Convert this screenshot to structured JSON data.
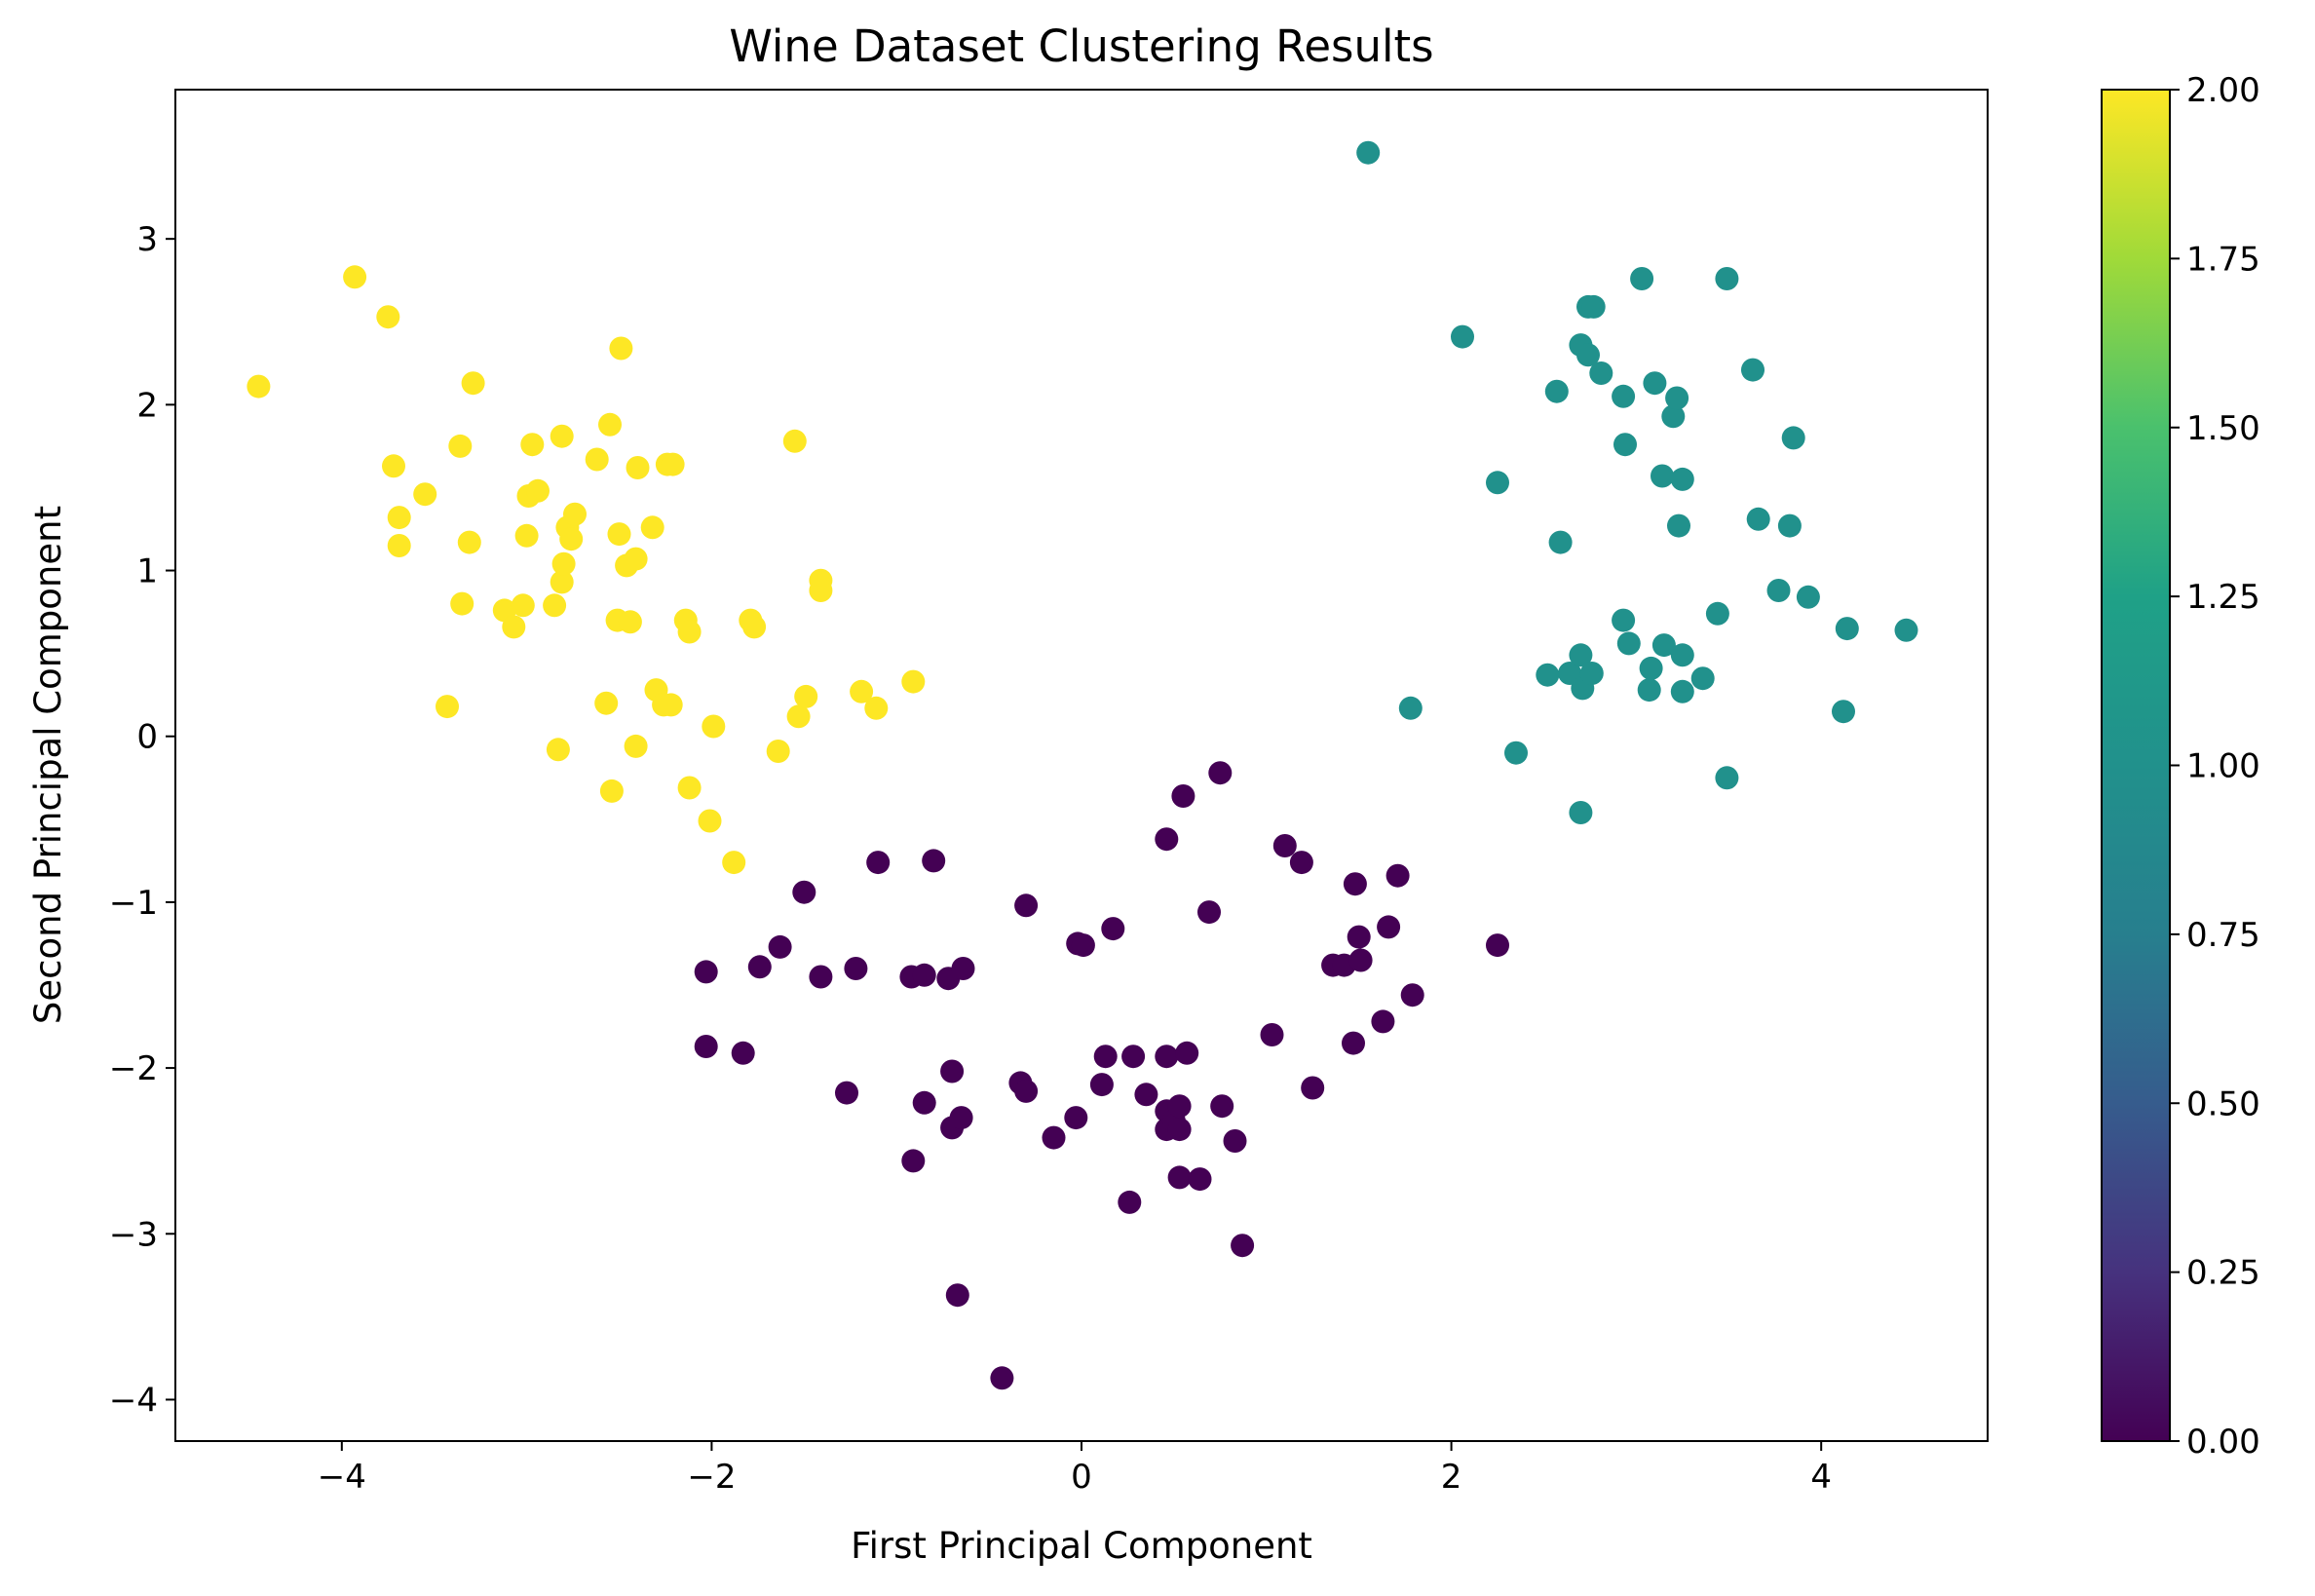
{
  "chart_data": {
    "type": "scatter",
    "title": "Wine Dataset Clustering Results",
    "xlabel": "First Principal Component",
    "ylabel": "Second Principal Component",
    "xlim": [
      -4.9,
      4.9
    ],
    "ylim": [
      -4.25,
      3.9
    ],
    "x_ticks": [
      -4,
      -2,
      0,
      2,
      4
    ],
    "x_tick_labels": [
      "−4",
      "−2",
      "0",
      "2",
      "4"
    ],
    "y_ticks": [
      -4,
      -3,
      -2,
      -1,
      0,
      1,
      2,
      3
    ],
    "y_tick_labels": [
      "−4",
      "−3",
      "−2",
      "−1",
      "0",
      "1",
      "2",
      "3"
    ],
    "grid": false,
    "colormap": "viridis",
    "colorbar": {
      "range": [
        0,
        2
      ],
      "ticks": [
        0,
        0.25,
        0.5,
        0.75,
        1,
        1.25,
        1.5,
        1.75,
        2
      ],
      "tick_labels": [
        "0.00",
        "0.25",
        "0.50",
        "0.75",
        "1.00",
        "1.25",
        "1.50",
        "1.75",
        "2.00"
      ]
    },
    "cluster_colors": {
      "0": "#440154",
      "1": "#21918c",
      "2": "#fde725"
    },
    "points": [
      {
        "x": -4.45,
        "y": 2.11,
        "c": 2
      },
      {
        "x": -3.93,
        "y": 2.77,
        "c": 2
      },
      {
        "x": -3.75,
        "y": 2.53,
        "c": 2
      },
      {
        "x": -3.72,
        "y": 1.63,
        "c": 2
      },
      {
        "x": -3.69,
        "y": 1.32,
        "c": 2
      },
      {
        "x": -3.69,
        "y": 1.15,
        "c": 2
      },
      {
        "x": -3.55,
        "y": 1.46,
        "c": 2
      },
      {
        "x": -3.43,
        "y": 0.18,
        "c": 2
      },
      {
        "x": -3.36,
        "y": 1.75,
        "c": 2
      },
      {
        "x": -3.35,
        "y": 0.8,
        "c": 2
      },
      {
        "x": -3.31,
        "y": 1.17,
        "c": 2
      },
      {
        "x": -3.29,
        "y": 2.13,
        "c": 2
      },
      {
        "x": -3.12,
        "y": 0.76,
        "c": 2
      },
      {
        "x": -3.07,
        "y": 0.66,
        "c": 2
      },
      {
        "x": -3.02,
        "y": 0.79,
        "c": 2
      },
      {
        "x": -3.0,
        "y": 1.21,
        "c": 2
      },
      {
        "x": -2.99,
        "y": 1.45,
        "c": 2
      },
      {
        "x": -2.97,
        "y": 1.76,
        "c": 2
      },
      {
        "x": -2.94,
        "y": 1.48,
        "c": 2
      },
      {
        "x": -2.85,
        "y": 0.79,
        "c": 2
      },
      {
        "x": -2.83,
        "y": -0.08,
        "c": 2
      },
      {
        "x": -2.81,
        "y": 1.81,
        "c": 2
      },
      {
        "x": -2.81,
        "y": 0.93,
        "c": 2
      },
      {
        "x": -2.8,
        "y": 1.04,
        "c": 2
      },
      {
        "x": -2.78,
        "y": 1.26,
        "c": 2
      },
      {
        "x": -2.76,
        "y": 1.19,
        "c": 2
      },
      {
        "x": -2.74,
        "y": 1.34,
        "c": 2
      },
      {
        "x": -2.62,
        "y": 1.67,
        "c": 2
      },
      {
        "x": -2.57,
        "y": 0.2,
        "c": 2
      },
      {
        "x": -2.55,
        "y": 1.88,
        "c": 2
      },
      {
        "x": -2.54,
        "y": -0.33,
        "c": 2
      },
      {
        "x": -2.51,
        "y": 0.7,
        "c": 2
      },
      {
        "x": -2.5,
        "y": 1.22,
        "c": 2
      },
      {
        "x": -2.49,
        "y": 2.34,
        "c": 2
      },
      {
        "x": -2.46,
        "y": 1.03,
        "c": 2
      },
      {
        "x": -2.44,
        "y": 0.69,
        "c": 2
      },
      {
        "x": -2.41,
        "y": 1.07,
        "c": 2
      },
      {
        "x": -2.41,
        "y": -0.06,
        "c": 2
      },
      {
        "x": -2.4,
        "y": 1.62,
        "c": 2
      },
      {
        "x": -2.32,
        "y": 1.26,
        "c": 2
      },
      {
        "x": -2.3,
        "y": 0.28,
        "c": 2
      },
      {
        "x": -2.26,
        "y": 0.19,
        "c": 2
      },
      {
        "x": -2.24,
        "y": 1.64,
        "c": 2
      },
      {
        "x": -2.21,
        "y": 1.64,
        "c": 2
      },
      {
        "x": -2.22,
        "y": 0.19,
        "c": 2
      },
      {
        "x": -2.14,
        "y": 0.7,
        "c": 2
      },
      {
        "x": -2.12,
        "y": 0.63,
        "c": 2
      },
      {
        "x": -2.12,
        "y": -0.31,
        "c": 2
      },
      {
        "x": -2.01,
        "y": -0.51,
        "c": 2
      },
      {
        "x": -1.99,
        "y": 0.06,
        "c": 2
      },
      {
        "x": -1.88,
        "y": -0.76,
        "c": 2
      },
      {
        "x": -1.79,
        "y": 0.7,
        "c": 2
      },
      {
        "x": -1.77,
        "y": 0.66,
        "c": 2
      },
      {
        "x": -1.64,
        "y": -0.09,
        "c": 2
      },
      {
        "x": -1.55,
        "y": 1.78,
        "c": 2
      },
      {
        "x": -1.53,
        "y": 0.12,
        "c": 2
      },
      {
        "x": -1.49,
        "y": 0.24,
        "c": 2
      },
      {
        "x": -1.41,
        "y": 0.94,
        "c": 2
      },
      {
        "x": -1.41,
        "y": 0.88,
        "c": 2
      },
      {
        "x": -1.19,
        "y": 0.27,
        "c": 2
      },
      {
        "x": -1.11,
        "y": 0.17,
        "c": 2
      },
      {
        "x": -0.91,
        "y": 0.33,
        "c": 2
      },
      {
        "x": 1.55,
        "y": 3.52,
        "c": 1
      },
      {
        "x": 2.06,
        "y": 2.41,
        "c": 1
      },
      {
        "x": 2.25,
        "y": 1.53,
        "c": 1
      },
      {
        "x": 2.35,
        "y": -0.1,
        "c": 1
      },
      {
        "x": 1.78,
        "y": 0.17,
        "c": 1
      },
      {
        "x": 2.52,
        "y": 0.37,
        "c": 1
      },
      {
        "x": 2.57,
        "y": 2.08,
        "c": 1
      },
      {
        "x": 2.59,
        "y": 1.17,
        "c": 1
      },
      {
        "x": 2.64,
        "y": 0.38,
        "c": 1
      },
      {
        "x": 2.7,
        "y": 2.36,
        "c": 1
      },
      {
        "x": 2.7,
        "y": 0.49,
        "c": 1
      },
      {
        "x": 2.7,
        "y": -0.46,
        "c": 1
      },
      {
        "x": 2.71,
        "y": 0.29,
        "c": 1
      },
      {
        "x": 2.74,
        "y": 2.59,
        "c": 1
      },
      {
        "x": 2.74,
        "y": 2.3,
        "c": 1
      },
      {
        "x": 2.77,
        "y": 2.59,
        "c": 1
      },
      {
        "x": 2.76,
        "y": 0.38,
        "c": 1
      },
      {
        "x": 2.81,
        "y": 2.19,
        "c": 1
      },
      {
        "x": 2.93,
        "y": 2.05,
        "c": 1
      },
      {
        "x": 2.93,
        "y": 0.7,
        "c": 1
      },
      {
        "x": 2.94,
        "y": 1.76,
        "c": 1
      },
      {
        "x": 2.96,
        "y": 0.56,
        "c": 1
      },
      {
        "x": 3.03,
        "y": 2.76,
        "c": 1
      },
      {
        "x": 3.07,
        "y": 0.28,
        "c": 1
      },
      {
        "x": 3.08,
        "y": 0.41,
        "c": 1
      },
      {
        "x": 3.1,
        "y": 2.13,
        "c": 1
      },
      {
        "x": 3.14,
        "y": 1.57,
        "c": 1
      },
      {
        "x": 3.15,
        "y": 0.55,
        "c": 1
      },
      {
        "x": 3.2,
        "y": 1.93,
        "c": 1
      },
      {
        "x": 3.22,
        "y": 2.04,
        "c": 1
      },
      {
        "x": 3.23,
        "y": 1.27,
        "c": 1
      },
      {
        "x": 3.25,
        "y": 1.55,
        "c": 1
      },
      {
        "x": 3.25,
        "y": 0.49,
        "c": 1
      },
      {
        "x": 3.25,
        "y": 0.27,
        "c": 1
      },
      {
        "x": 3.36,
        "y": 0.35,
        "c": 1
      },
      {
        "x": 3.44,
        "y": 0.74,
        "c": 1
      },
      {
        "x": 3.49,
        "y": 2.76,
        "c": 1
      },
      {
        "x": 3.49,
        "y": -0.25,
        "c": 1
      },
      {
        "x": 3.63,
        "y": 2.21,
        "c": 1
      },
      {
        "x": 3.66,
        "y": 1.31,
        "c": 1
      },
      {
        "x": 3.77,
        "y": 0.88,
        "c": 1
      },
      {
        "x": 3.83,
        "y": 1.27,
        "c": 1
      },
      {
        "x": 3.85,
        "y": 1.8,
        "c": 1
      },
      {
        "x": 3.93,
        "y": 0.84,
        "c": 1
      },
      {
        "x": 4.12,
        "y": 0.15,
        "c": 1
      },
      {
        "x": 4.14,
        "y": 0.65,
        "c": 1
      },
      {
        "x": 4.46,
        "y": 0.64,
        "c": 1
      },
      {
        "x": -2.03,
        "y": -1.42,
        "c": 0
      },
      {
        "x": -2.03,
        "y": -1.87,
        "c": 0
      },
      {
        "x": -1.83,
        "y": -1.91,
        "c": 0
      },
      {
        "x": -1.74,
        "y": -1.39,
        "c": 0
      },
      {
        "x": -1.63,
        "y": -1.27,
        "c": 0
      },
      {
        "x": -1.5,
        "y": -0.94,
        "c": 0
      },
      {
        "x": -1.41,
        "y": -1.45,
        "c": 0
      },
      {
        "x": -1.27,
        "y": -2.15,
        "c": 0
      },
      {
        "x": -1.22,
        "y": -1.4,
        "c": 0
      },
      {
        "x": -1.1,
        "y": -0.76,
        "c": 0
      },
      {
        "x": -0.92,
        "y": -1.45,
        "c": 0
      },
      {
        "x": -0.91,
        "y": -2.56,
        "c": 0
      },
      {
        "x": -0.85,
        "y": -2.21,
        "c": 0
      },
      {
        "x": -0.85,
        "y": -1.44,
        "c": 0
      },
      {
        "x": -0.8,
        "y": -0.75,
        "c": 0
      },
      {
        "x": -0.72,
        "y": -1.46,
        "c": 0
      },
      {
        "x": -0.7,
        "y": -2.02,
        "c": 0
      },
      {
        "x": -0.7,
        "y": -2.36,
        "c": 0
      },
      {
        "x": -0.67,
        "y": -3.37,
        "c": 0
      },
      {
        "x": -0.65,
        "y": -2.3,
        "c": 0
      },
      {
        "x": -0.64,
        "y": -1.4,
        "c": 0
      },
      {
        "x": -0.43,
        "y": -3.87,
        "c": 0
      },
      {
        "x": -0.33,
        "y": -2.09,
        "c": 0
      },
      {
        "x": -0.3,
        "y": -1.02,
        "c": 0
      },
      {
        "x": -0.3,
        "y": -2.14,
        "c": 0
      },
      {
        "x": -0.15,
        "y": -2.42,
        "c": 0
      },
      {
        "x": -0.03,
        "y": -2.3,
        "c": 0
      },
      {
        "x": -0.02,
        "y": -1.25,
        "c": 0
      },
      {
        "x": 0.01,
        "y": -1.26,
        "c": 0
      },
      {
        "x": 0.11,
        "y": -2.1,
        "c": 0
      },
      {
        "x": 0.13,
        "y": -1.93,
        "c": 0
      },
      {
        "x": 0.17,
        "y": -1.16,
        "c": 0
      },
      {
        "x": 0.26,
        "y": -2.81,
        "c": 0
      },
      {
        "x": 0.28,
        "y": -1.93,
        "c": 0
      },
      {
        "x": 0.35,
        "y": -2.16,
        "c": 0
      },
      {
        "x": 0.46,
        "y": -0.62,
        "c": 0
      },
      {
        "x": 0.46,
        "y": -2.26,
        "c": 0
      },
      {
        "x": 0.46,
        "y": -2.37,
        "c": 0
      },
      {
        "x": 0.46,
        "y": -1.93,
        "c": 0
      },
      {
        "x": 0.5,
        "y": -2.32,
        "c": 0
      },
      {
        "x": 0.53,
        "y": -2.66,
        "c": 0
      },
      {
        "x": 0.53,
        "y": -2.23,
        "c": 0
      },
      {
        "x": 0.53,
        "y": -2.37,
        "c": 0
      },
      {
        "x": 0.55,
        "y": -0.36,
        "c": 0
      },
      {
        "x": 0.57,
        "y": -1.91,
        "c": 0
      },
      {
        "x": 0.64,
        "y": -2.67,
        "c": 0
      },
      {
        "x": 0.69,
        "y": -1.06,
        "c": 0
      },
      {
        "x": 0.75,
        "y": -0.22,
        "c": 0
      },
      {
        "x": 0.76,
        "y": -2.23,
        "c": 0
      },
      {
        "x": 0.83,
        "y": -2.44,
        "c": 0
      },
      {
        "x": 0.87,
        "y": -3.07,
        "c": 0
      },
      {
        "x": 1.03,
        "y": -1.8,
        "c": 0
      },
      {
        "x": 1.1,
        "y": -0.66,
        "c": 0
      },
      {
        "x": 1.19,
        "y": -0.76,
        "c": 0
      },
      {
        "x": 1.25,
        "y": -2.12,
        "c": 0
      },
      {
        "x": 1.36,
        "y": -1.38,
        "c": 0
      },
      {
        "x": 1.42,
        "y": -1.38,
        "c": 0
      },
      {
        "x": 1.47,
        "y": -1.85,
        "c": 0
      },
      {
        "x": 1.48,
        "y": -0.89,
        "c": 0
      },
      {
        "x": 1.5,
        "y": -1.21,
        "c": 0
      },
      {
        "x": 1.51,
        "y": -1.35,
        "c": 0
      },
      {
        "x": 1.63,
        "y": -1.72,
        "c": 0
      },
      {
        "x": 1.66,
        "y": -1.15,
        "c": 0
      },
      {
        "x": 1.71,
        "y": -0.84,
        "c": 0
      },
      {
        "x": 1.79,
        "y": -1.56,
        "c": 0
      },
      {
        "x": 2.25,
        "y": -1.26,
        "c": 0
      }
    ]
  }
}
